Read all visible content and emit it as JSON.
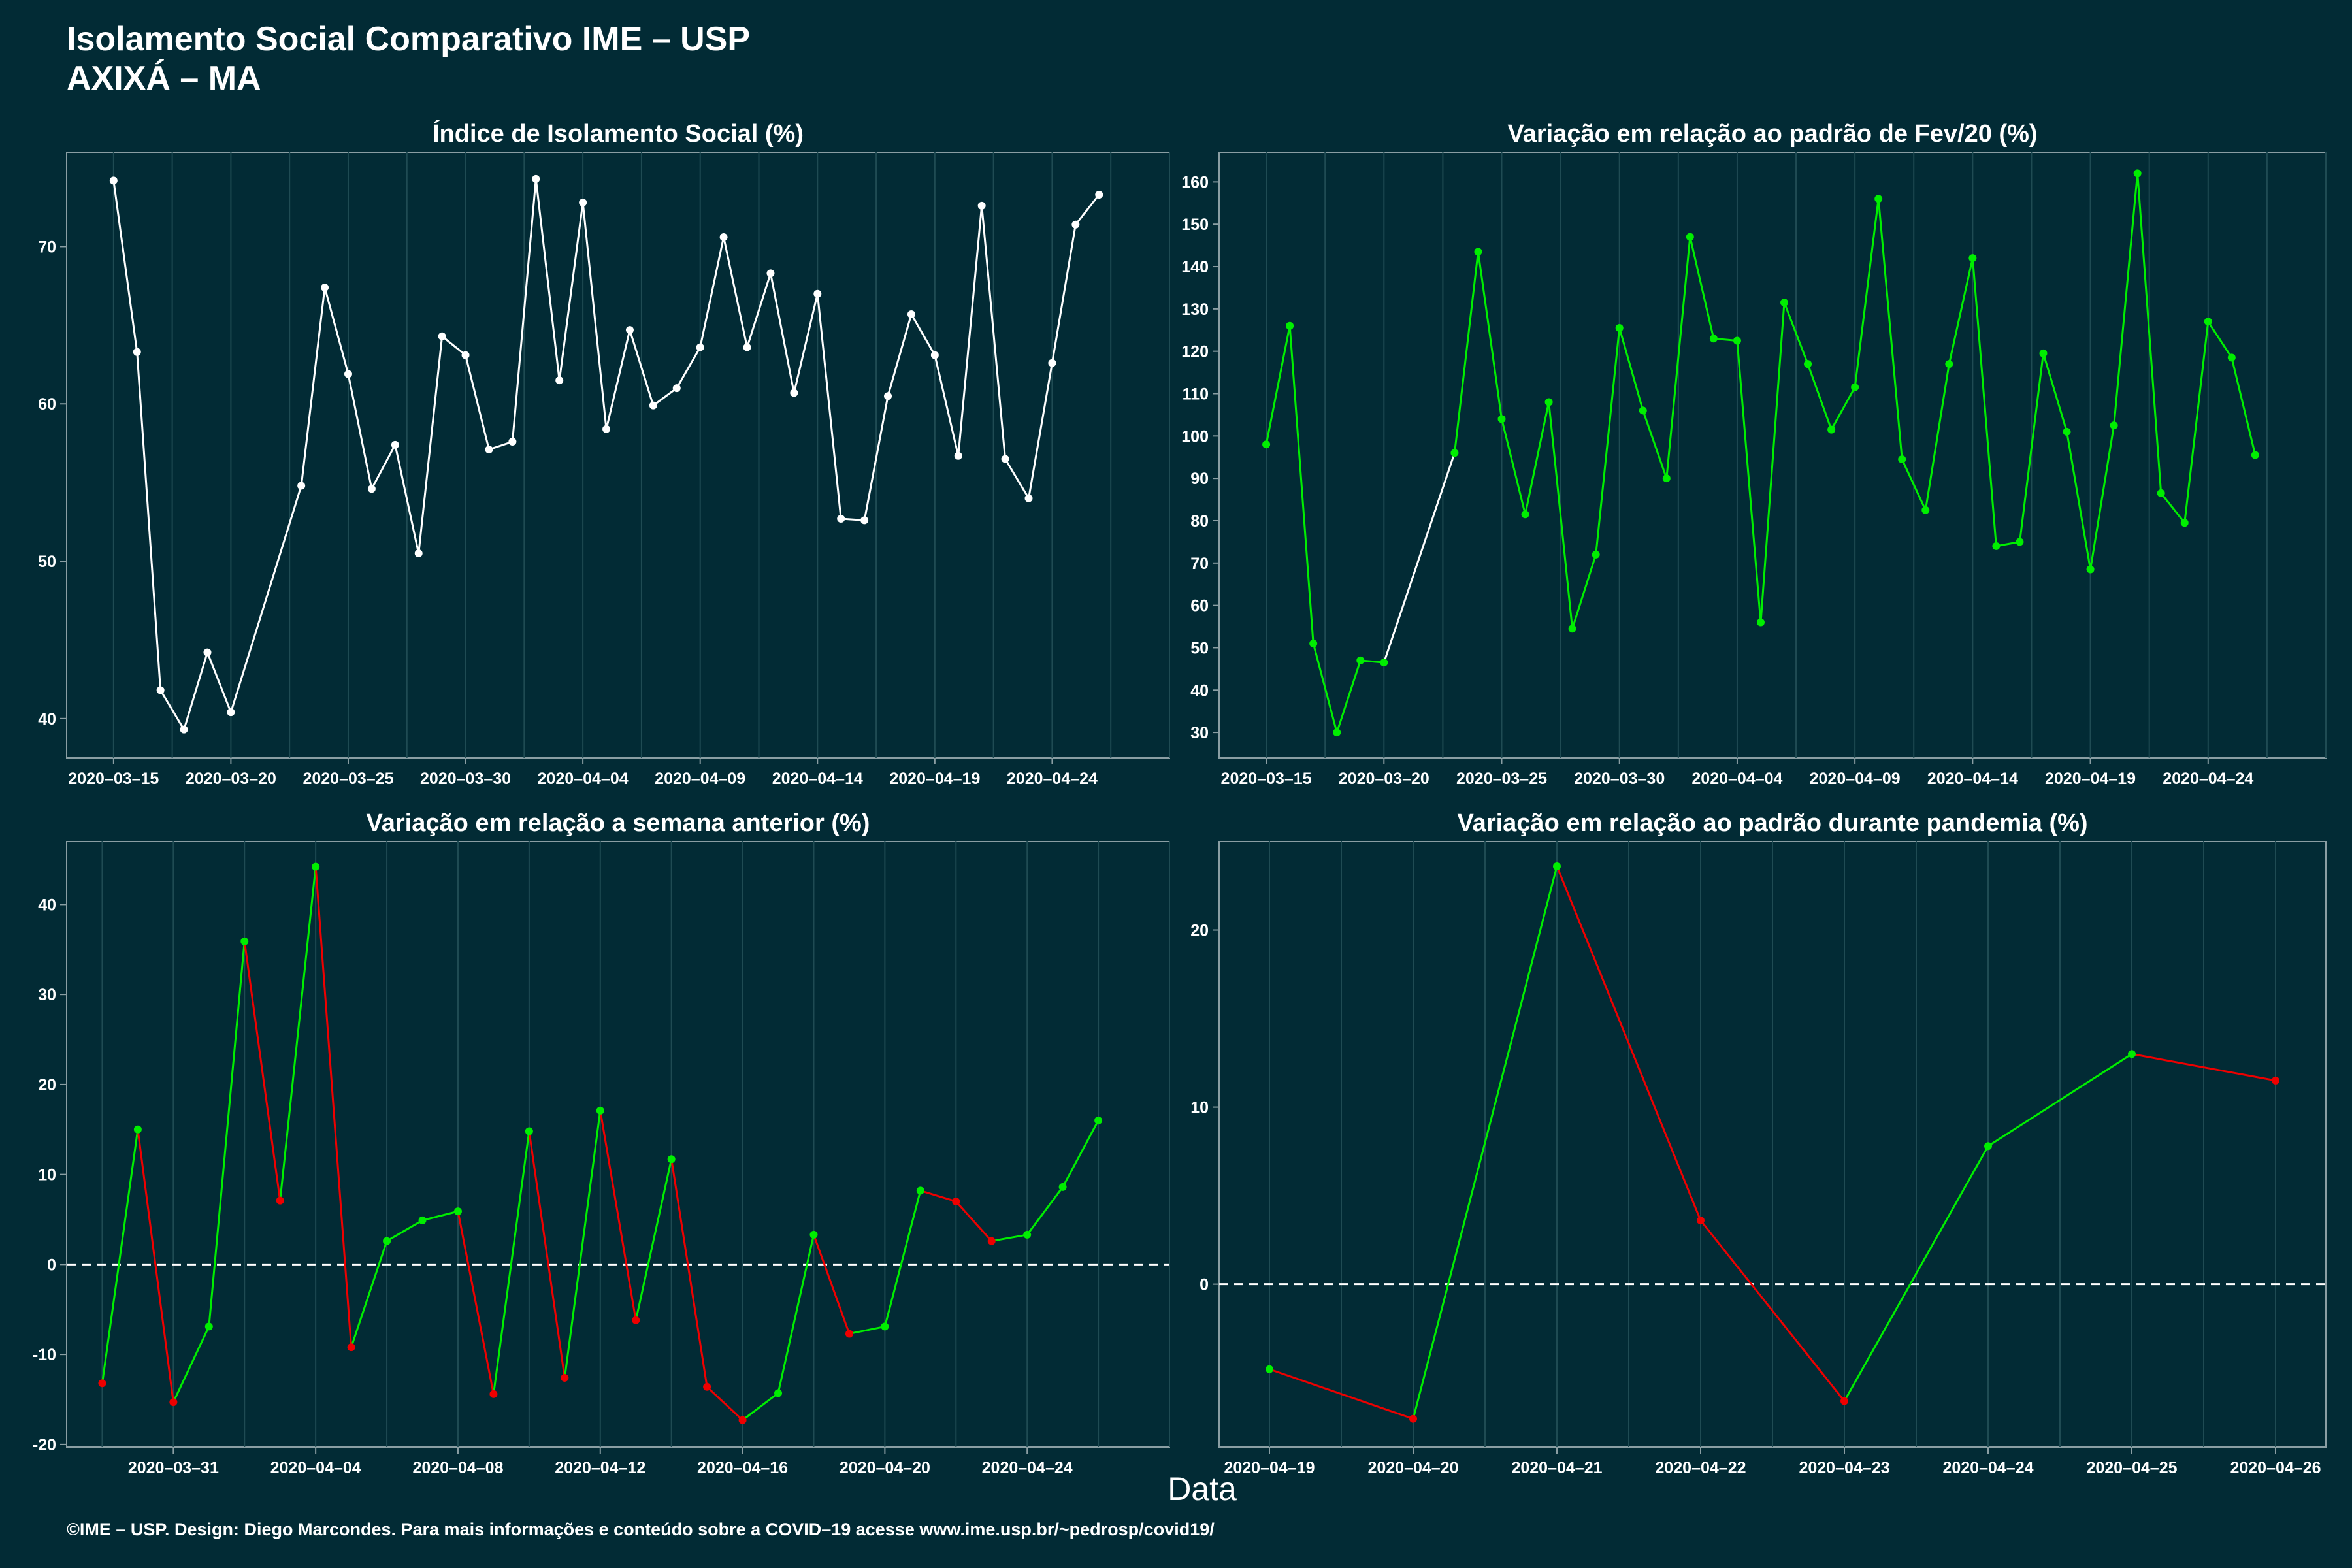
{
  "header": {
    "title": "Isolamento Social Comparativo IME – USP",
    "subtitle": "AXIXÁ – MA"
  },
  "footer": "©IME – USP. Design: Diego Marcondes. Para mais informações e conteúdo sobre a COVID–19 acesse www.ime.usp.br/~pedrosp/covid19/",
  "x_axis_label": "Data",
  "colors": {
    "background": "#022b35",
    "line_white": "#ffffff",
    "positive": "#00ee00",
    "negative": "#ee0000",
    "grid": "#1f4b53"
  },
  "chart_data": [
    {
      "type": "line",
      "title": "Índice de Isolamento Social (%)",
      "x_ticks": [
        "2020–03–15",
        "2020–03–20",
        "2020–03–25",
        "2020–03–30",
        "2020–04–04",
        "2020–04–09",
        "2020–04–14",
        "2020–04–19",
        "2020–04–24"
      ],
      "y_ticks": [
        40,
        50,
        60,
        70
      ],
      "xlim": [
        "2020-03-13",
        "2020-04-29"
      ],
      "ylim": [
        37.5,
        76.0
      ],
      "color": "white",
      "points": [
        [
          "2020-03-15",
          74.2
        ],
        [
          "2020-03-16",
          63.3
        ],
        [
          "2020-03-17",
          41.8
        ],
        [
          "2020-03-18",
          39.3
        ],
        [
          "2020-03-19",
          44.2
        ],
        [
          "2020-03-20",
          40.4
        ],
        [
          "2020-03-23",
          54.8
        ],
        [
          "2020-03-24",
          67.4
        ],
        [
          "2020-03-25",
          61.9
        ],
        [
          "2020-03-26",
          54.6
        ],
        [
          "2020-03-27",
          57.4
        ],
        [
          "2020-03-28",
          50.5
        ],
        [
          "2020-03-29",
          64.3
        ],
        [
          "2020-03-30",
          63.1
        ],
        [
          "2020-03-31",
          57.1
        ],
        [
          "2020-04-01",
          57.6
        ],
        [
          "2020-04-02",
          74.3
        ],
        [
          "2020-04-03",
          61.5
        ],
        [
          "2020-04-04",
          72.8
        ],
        [
          "2020-04-05",
          58.4
        ],
        [
          "2020-04-06",
          64.7
        ],
        [
          "2020-04-07",
          59.9
        ],
        [
          "2020-04-08",
          61.0
        ],
        [
          "2020-04-09",
          63.6
        ],
        [
          "2020-04-10",
          70.6
        ],
        [
          "2020-04-11",
          63.6
        ],
        [
          "2020-04-12",
          68.3
        ],
        [
          "2020-04-13",
          60.7
        ],
        [
          "2020-04-14",
          67.0
        ],
        [
          "2020-04-15",
          52.7
        ],
        [
          "2020-04-16",
          52.6
        ],
        [
          "2020-04-17",
          60.5
        ],
        [
          "2020-04-18",
          65.7
        ],
        [
          "2020-04-19",
          63.1
        ],
        [
          "2020-04-20",
          56.7
        ],
        [
          "2020-04-21",
          72.6
        ],
        [
          "2020-04-22",
          56.5
        ],
        [
          "2020-04-23",
          54.0
        ],
        [
          "2020-04-24",
          62.6
        ],
        [
          "2020-04-25",
          71.4
        ],
        [
          "2020-04-26",
          73.3
        ]
      ]
    },
    {
      "type": "line",
      "title": "Variação em relação ao padrão de Fev/20 (%)",
      "x_ticks": [
        "2020–03–15",
        "2020–03–20",
        "2020–03–25",
        "2020–03–30",
        "2020–04–04",
        "2020–04–09",
        "2020–04–14",
        "2020–04–19",
        "2020–04–24"
      ],
      "y_ticks": [
        30,
        40,
        50,
        60,
        70,
        80,
        90,
        100,
        110,
        120,
        130,
        140,
        150,
        160
      ],
      "xlim": [
        "2020-03-13",
        "2020-04-29"
      ],
      "ylim": [
        24,
        167
      ],
      "color": "green",
      "points": [
        [
          "2020-03-15",
          98
        ],
        [
          "2020-03-16",
          126
        ],
        [
          "2020-03-17",
          51
        ],
        [
          "2020-03-18",
          30
        ],
        [
          "2020-03-19",
          47
        ],
        [
          "2020-03-20",
          46.5
        ],
        [
          "2020-03-23",
          96
        ],
        [
          "2020-03-24",
          143.5
        ],
        [
          "2020-03-25",
          104
        ],
        [
          "2020-03-26",
          81.5
        ],
        [
          "2020-03-27",
          108
        ],
        [
          "2020-03-28",
          54.5
        ],
        [
          "2020-03-29",
          72
        ],
        [
          "2020-03-30",
          125.5
        ],
        [
          "2020-03-31",
          106
        ],
        [
          "2020-04-01",
          90
        ],
        [
          "2020-04-02",
          147
        ],
        [
          "2020-04-03",
          123
        ],
        [
          "2020-04-04",
          122.5
        ],
        [
          "2020-04-05",
          56
        ],
        [
          "2020-04-06",
          131.5
        ],
        [
          "2020-04-07",
          117
        ],
        [
          "2020-04-08",
          101.5
        ],
        [
          "2020-04-09",
          111.5
        ],
        [
          "2020-04-10",
          156
        ],
        [
          "2020-04-11",
          94.5
        ],
        [
          "2020-04-12",
          82.5
        ],
        [
          "2020-04-13",
          117
        ],
        [
          "2020-04-14",
          142
        ],
        [
          "2020-04-15",
          74
        ],
        [
          "2020-04-16",
          75
        ],
        [
          "2020-04-17",
          119.5
        ],
        [
          "2020-04-18",
          101
        ],
        [
          "2020-04-19",
          68.5
        ],
        [
          "2020-04-20",
          102.5
        ],
        [
          "2020-04-21",
          162
        ],
        [
          "2020-04-22",
          86.5
        ],
        [
          "2020-04-23",
          79.5
        ],
        [
          "2020-04-24",
          127
        ],
        [
          "2020-04-25",
          118.5
        ],
        [
          "2020-04-26",
          95.5
        ]
      ]
    },
    {
      "type": "line",
      "title": "Variação em relação a semana anterior (%)",
      "x_ticks": [
        "2020–03–31",
        "2020–04–04",
        "2020–04–08",
        "2020–04–12",
        "2020–04–16",
        "2020–04–20",
        "2020–04–24"
      ],
      "y_ticks": [
        -20,
        -10,
        0,
        10,
        20,
        30,
        40
      ],
      "xlim": [
        "2020-03-28",
        "2020-04-28"
      ],
      "ylim": [
        -20.3,
        47
      ],
      "color": "green/red by slope",
      "reference_line": 0,
      "points": [
        [
          "2020-03-29",
          -13.2
        ],
        [
          "2020-03-30",
          15.0
        ],
        [
          "2020-03-31",
          -15.3
        ],
        [
          "2020-04-01",
          -6.9
        ],
        [
          "2020-04-02",
          35.9
        ],
        [
          "2020-04-03",
          7.1
        ],
        [
          "2020-04-04",
          44.2
        ],
        [
          "2020-04-05",
          -9.2
        ],
        [
          "2020-04-06",
          2.6
        ],
        [
          "2020-04-07",
          4.9
        ],
        [
          "2020-04-08",
          5.9
        ],
        [
          "2020-04-09",
          -14.4
        ],
        [
          "2020-04-10",
          14.8
        ],
        [
          "2020-04-11",
          -12.6
        ],
        [
          "2020-04-12",
          17.1
        ],
        [
          "2020-04-13",
          -6.2
        ],
        [
          "2020-04-14",
          11.7
        ],
        [
          "2020-04-15",
          -13.6
        ],
        [
          "2020-04-16",
          -17.3
        ],
        [
          "2020-04-17",
          -14.3
        ],
        [
          "2020-04-18",
          3.3
        ],
        [
          "2020-04-19",
          -7.7
        ],
        [
          "2020-04-20",
          -6.9
        ],
        [
          "2020-04-21",
          8.2
        ],
        [
          "2020-04-22",
          7.0
        ],
        [
          "2020-04-23",
          2.6
        ],
        [
          "2020-04-24",
          3.3
        ],
        [
          "2020-04-25",
          8.6
        ],
        [
          "2020-04-26",
          16.0
        ]
      ]
    },
    {
      "type": "line",
      "title": "Variação em relação ao padrão durante pandemia (%)",
      "x_ticks": [
        "2020–04–19",
        "2020–04–20",
        "2020–04–21",
        "2020–04–22",
        "2020–04–23",
        "2020–04–24",
        "2020–04–25",
        "2020–04–26"
      ],
      "y_ticks": [
        0,
        10,
        20
      ],
      "xlim": [
        "2020-04-18.65",
        "2020-04-26.35"
      ],
      "ylim": [
        -9.2,
        25
      ],
      "color": "green/red by slope",
      "reference_line": 0,
      "points": [
        [
          "2020-04-19",
          -4.8
        ],
        [
          "2020-04-20",
          -7.6
        ],
        [
          "2020-04-21",
          23.6
        ],
        [
          "2020-04-22",
          3.6
        ],
        [
          "2020-04-23",
          -6.6
        ],
        [
          "2020-04-24",
          7.8
        ],
        [
          "2020-04-25",
          13.0
        ],
        [
          "2020-04-26",
          11.5
        ]
      ]
    }
  ]
}
